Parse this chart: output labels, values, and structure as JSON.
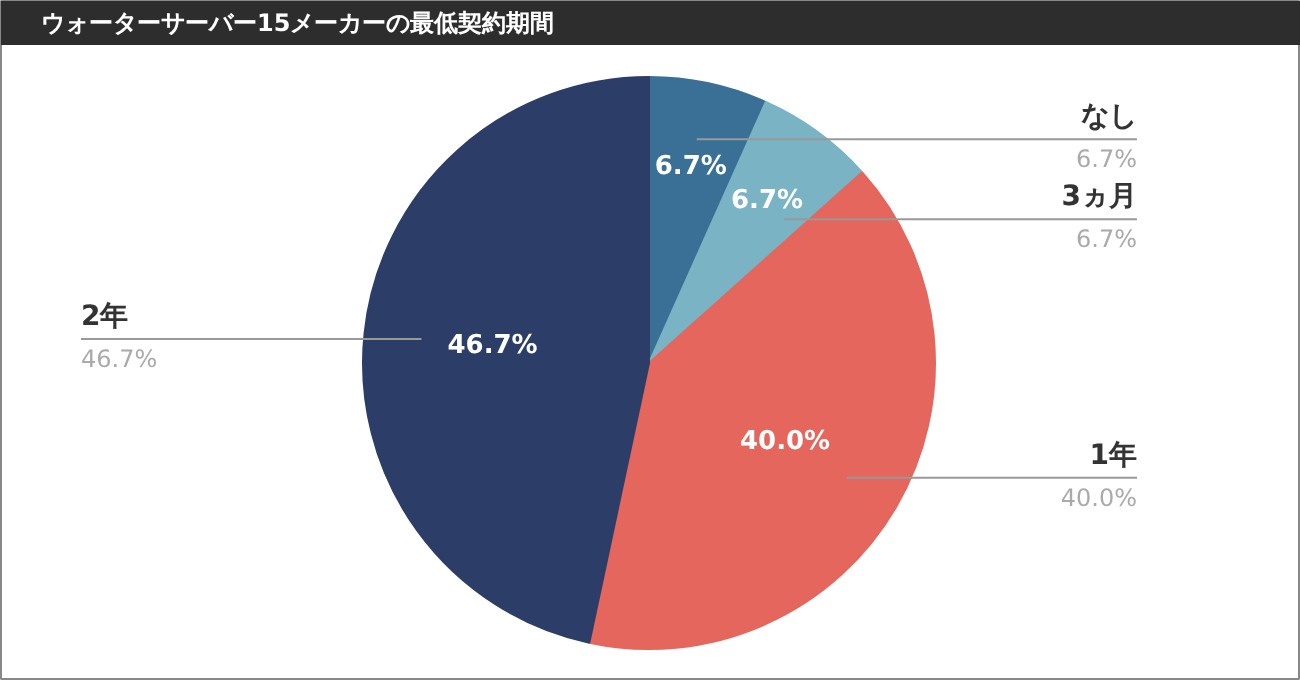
{
  "chart_data": {
    "type": "pie",
    "title": "ウォーターサーバー15メーカーの最低契約期間",
    "categories": [
      "なし",
      "3ヵ月",
      "1年",
      "2年"
    ],
    "values": [
      6.7,
      6.7,
      40.0,
      46.7
    ],
    "value_labels": [
      "6.7%",
      "6.7%",
      "40.0%",
      "46.7%"
    ],
    "colors": [
      "#3a7096",
      "#7ab4c4",
      "#e4665c",
      "#2c3e68"
    ]
  }
}
